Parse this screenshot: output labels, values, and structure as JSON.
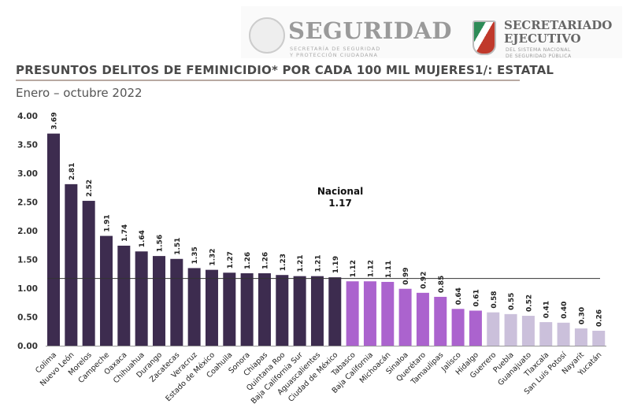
{
  "header": {
    "logo_left": {
      "name": "SEGURIDAD",
      "subtitle_1": "SECRETARÍA DE SEGURIDAD",
      "subtitle_2": "Y PROTECCIÓN CIUDADANA"
    },
    "logo_right": {
      "name_1": "SECRETARIADO",
      "name_2": "EJECUTIVO",
      "subtitle_1": "DEL SISTEMA NACIONAL",
      "subtitle_2": "DE SEGURIDAD PÚBLICA"
    }
  },
  "chart_data": {
    "type": "bar",
    "title": "PRESUNTOS DELITOS DE FEMINICIDIO* POR CADA 100 MIL MUJERES1/: ESTATAL",
    "subtitle": "Enero – octubre 2022",
    "xlabel": "",
    "ylabel": "",
    "ylim": [
      0,
      4
    ],
    "yticks": [
      "0.00",
      "0.50",
      "1.00",
      "1.50",
      "2.00",
      "2.50",
      "3.00",
      "3.50",
      "4.00"
    ],
    "grid": false,
    "categories": [
      "Colima",
      "Nuevo León",
      "Morelos",
      "Campeche",
      "Oaxaca",
      "Chihuahua",
      "Durango",
      "Zacatecas",
      "Veracruz",
      "Estado de México",
      "Coahuila",
      "Sonora",
      "Chiapas",
      "Quintana Roo",
      "Baja California Sur",
      "Aguascalientes",
      "Ciudad de México",
      "Tabasco",
      "Baja California",
      "Michoacán",
      "Sinaloa",
      "Querétaro",
      "Tamaulipas",
      "Jalisco",
      "Hidalgo",
      "Guerrero",
      "Puebla",
      "Guanajuato",
      "Tlaxcala",
      "San Luis Potosí",
      "Nayarit",
      "Yucatán"
    ],
    "values": [
      3.69,
      2.81,
      2.52,
      1.91,
      1.74,
      1.64,
      1.56,
      1.51,
      1.35,
      1.32,
      1.27,
      1.26,
      1.26,
      1.23,
      1.21,
      1.21,
      1.19,
      1.12,
      1.12,
      1.11,
      0.99,
      0.92,
      0.85,
      0.64,
      0.61,
      0.58,
      0.55,
      0.52,
      0.41,
      0.4,
      0.3,
      0.26
    ],
    "data_labels": [
      "3.69",
      "2.81",
      "2.52",
      "1.91",
      "1.74",
      "1.64",
      "1.56",
      "1.51",
      "1.35",
      "1.32",
      "1.27",
      "1.26",
      "1.26",
      "1.23",
      "1.21",
      "1.21",
      "1.19",
      "1.12",
      "1.12",
      "1.11",
      "0.99",
      "0.92",
      "0.85",
      "0.64",
      "0.61",
      "0.58",
      "0.55",
      "0.52",
      "0.41",
      "0.40",
      "0.30",
      "0.26"
    ],
    "color_groups": [
      0,
      0,
      0,
      0,
      0,
      0,
      0,
      0,
      0,
      0,
      0,
      0,
      0,
      0,
      0,
      0,
      0,
      1,
      1,
      1,
      1,
      1,
      1,
      1,
      1,
      2,
      2,
      2,
      2,
      2,
      2,
      2
    ],
    "colors": [
      "#3d2c4f",
      "#ab63ce",
      "#cbc0db"
    ],
    "reference_line": {
      "label": "Nacional",
      "value": 1.17,
      "value_label": "1.17",
      "color": "#333333"
    }
  }
}
